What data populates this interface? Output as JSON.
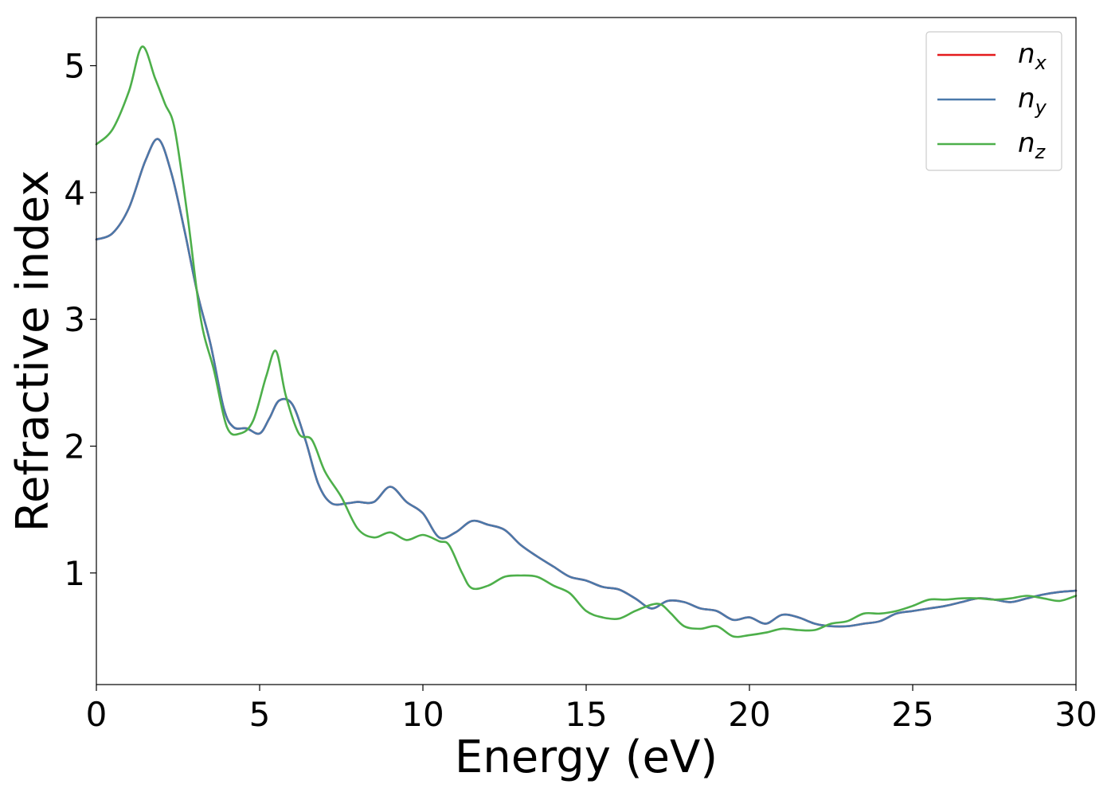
{
  "chart_data": {
    "type": "line",
    "xlabel": "Energy (eV)",
    "ylabel": "Refractive index",
    "xlim": [
      0,
      30
    ],
    "ylim": [
      0.12,
      5.38
    ],
    "x_ticks": [
      0,
      5,
      10,
      15,
      20,
      25,
      30
    ],
    "y_ticks": [
      1,
      2,
      3,
      4,
      5
    ],
    "grid": false,
    "legend": {
      "position": "top-right"
    },
    "series": [
      {
        "name": "n_x",
        "label_base": "n",
        "label_sub": "x",
        "color": "#e41a1c",
        "x": [
          0,
          0.5,
          1.0,
          1.5,
          1.9,
          2.3,
          2.7,
          3.1,
          3.5,
          3.9,
          4.2,
          4.6,
          5.0,
          5.3,
          5.6,
          6.0,
          6.4,
          6.8,
          7.2,
          7.7,
          8.0,
          8.5,
          9.0,
          9.5,
          10.0,
          10.5,
          11.0,
          11.5,
          12.0,
          12.5,
          13.0,
          13.5,
          14.0,
          14.5,
          15.0,
          15.5,
          16.0,
          16.5,
          17.0,
          17.5,
          18.0,
          18.5,
          19.0,
          19.5,
          20.0,
          20.5,
          21.0,
          21.5,
          22.0,
          22.5,
          23.0,
          23.5,
          24.0,
          24.5,
          25.0,
          25.5,
          26.0,
          26.5,
          27.0,
          27.5,
          28.0,
          28.5,
          29.0,
          29.5,
          30.0
        ],
        "y": [
          3.63,
          3.68,
          3.88,
          4.25,
          4.42,
          4.15,
          3.7,
          3.2,
          2.8,
          2.3,
          2.15,
          2.14,
          2.1,
          2.22,
          2.36,
          2.33,
          2.05,
          1.7,
          1.55,
          1.55,
          1.56,
          1.56,
          1.68,
          1.56,
          1.47,
          1.28,
          1.32,
          1.41,
          1.38,
          1.34,
          1.22,
          1.13,
          1.05,
          0.97,
          0.94,
          0.89,
          0.87,
          0.8,
          0.72,
          0.78,
          0.77,
          0.72,
          0.7,
          0.63,
          0.65,
          0.6,
          0.67,
          0.65,
          0.6,
          0.58,
          0.58,
          0.6,
          0.62,
          0.68,
          0.7,
          0.72,
          0.74,
          0.77,
          0.8,
          0.79,
          0.77,
          0.8,
          0.83,
          0.85,
          0.86
        ]
      },
      {
        "name": "n_y",
        "label_base": "n",
        "label_sub": "y",
        "color": "#4a79aa",
        "x": [
          0,
          0.5,
          1.0,
          1.5,
          1.9,
          2.3,
          2.7,
          3.1,
          3.5,
          3.9,
          4.2,
          4.6,
          5.0,
          5.3,
          5.6,
          6.0,
          6.4,
          6.8,
          7.2,
          7.7,
          8.0,
          8.5,
          9.0,
          9.5,
          10.0,
          10.5,
          11.0,
          11.5,
          12.0,
          12.5,
          13.0,
          13.5,
          14.0,
          14.5,
          15.0,
          15.5,
          16.0,
          16.5,
          17.0,
          17.5,
          18.0,
          18.5,
          19.0,
          19.5,
          20.0,
          20.5,
          21.0,
          21.5,
          22.0,
          22.5,
          23.0,
          23.5,
          24.0,
          24.5,
          25.0,
          25.5,
          26.0,
          26.5,
          27.0,
          27.5,
          28.0,
          28.5,
          29.0,
          29.5,
          30.0
        ],
        "y": [
          3.63,
          3.68,
          3.88,
          4.25,
          4.42,
          4.15,
          3.7,
          3.2,
          2.8,
          2.3,
          2.15,
          2.14,
          2.1,
          2.22,
          2.36,
          2.33,
          2.05,
          1.7,
          1.55,
          1.55,
          1.56,
          1.56,
          1.68,
          1.56,
          1.47,
          1.28,
          1.32,
          1.41,
          1.38,
          1.34,
          1.22,
          1.13,
          1.05,
          0.97,
          0.94,
          0.89,
          0.87,
          0.8,
          0.72,
          0.78,
          0.77,
          0.72,
          0.7,
          0.63,
          0.65,
          0.6,
          0.67,
          0.65,
          0.6,
          0.58,
          0.58,
          0.6,
          0.62,
          0.68,
          0.7,
          0.72,
          0.74,
          0.77,
          0.8,
          0.79,
          0.77,
          0.8,
          0.83,
          0.85,
          0.86
        ]
      },
      {
        "name": "n_z",
        "label_base": "n",
        "label_sub": "z",
        "color": "#4daf4a",
        "x": [
          0,
          0.5,
          1.0,
          1.4,
          1.8,
          2.1,
          2.4,
          2.8,
          3.2,
          3.6,
          4.0,
          4.4,
          4.8,
          5.2,
          5.5,
          5.8,
          6.2,
          6.6,
          7.0,
          7.5,
          8.0,
          8.5,
          9.0,
          9.5,
          10.0,
          10.5,
          10.8,
          11.2,
          11.5,
          12.0,
          12.5,
          13.0,
          13.5,
          14.0,
          14.5,
          15.0,
          15.5,
          16.0,
          16.5,
          17.0,
          17.3,
          17.6,
          18.0,
          18.5,
          19.0,
          19.5,
          20.0,
          20.5,
          21.0,
          21.5,
          22.0,
          22.5,
          23.0,
          23.5,
          24.0,
          24.5,
          25.0,
          25.5,
          26.0,
          26.5,
          27.0,
          27.5,
          28.0,
          28.5,
          29.0,
          29.5,
          30.0
        ],
        "y": [
          4.38,
          4.5,
          4.8,
          5.15,
          4.9,
          4.7,
          4.5,
          3.8,
          3.0,
          2.6,
          2.15,
          2.1,
          2.2,
          2.55,
          2.75,
          2.4,
          2.1,
          2.05,
          1.8,
          1.6,
          1.35,
          1.28,
          1.32,
          1.26,
          1.3,
          1.25,
          1.22,
          1.0,
          0.88,
          0.9,
          0.97,
          0.98,
          0.97,
          0.9,
          0.84,
          0.7,
          0.65,
          0.64,
          0.7,
          0.75,
          0.75,
          0.68,
          0.58,
          0.56,
          0.58,
          0.5,
          0.51,
          0.53,
          0.56,
          0.55,
          0.55,
          0.6,
          0.62,
          0.68,
          0.68,
          0.7,
          0.74,
          0.79,
          0.79,
          0.8,
          0.8,
          0.79,
          0.8,
          0.82,
          0.8,
          0.78,
          0.82
        ]
      }
    ]
  }
}
